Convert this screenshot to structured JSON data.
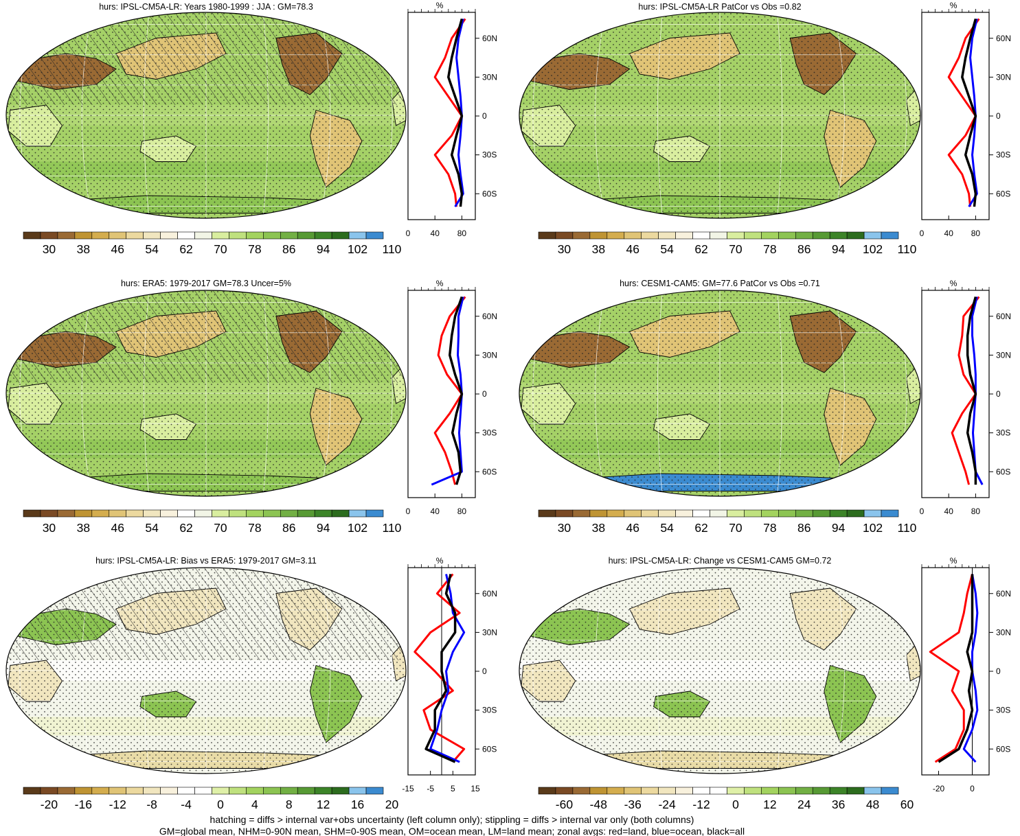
{
  "palettes": {
    "hurs": [
      "#5a3a1a",
      "#7a4a24",
      "#9a6a34",
      "#bf9433",
      "#d4ad4e",
      "#e0c476",
      "#ecd99f",
      "#f1e6bf",
      "#f8f1dd",
      "#ffffff",
      "#f2f5e6",
      "#d9ee9f",
      "#bfe17e",
      "#a3d35f",
      "#8cc452",
      "#72b044",
      "#579a34",
      "#3c8428",
      "#2c6c1e",
      "#8ac4ec",
      "#3b8bd0"
    ],
    "diff": [
      "#5a3a1a",
      "#7a4a24",
      "#9a6a34",
      "#bf9433",
      "#d4ad4e",
      "#e0c476",
      "#ecd99f",
      "#f1e6bf",
      "#f8f1dd",
      "#ffffff",
      "#ffffff",
      "#dff0a8",
      "#bfe17e",
      "#a3d35f",
      "#8cc452",
      "#72b044",
      "#579a34",
      "#3c8428",
      "#2c6c1e",
      "#8ac4ec",
      "#3b8bd0"
    ]
  },
  "panels": [
    {
      "id": "p1",
      "title": "hurs: IPSL-CM5A-LR: Years 1980-1999 : JJA : GM=78.3",
      "palette": "hurs",
      "bg": "#a5d167",
      "hatch": true,
      "colorbar_labels": [
        "30",
        "38",
        "46",
        "54",
        "62",
        "70",
        "78",
        "86",
        "94",
        "102",
        "110"
      ],
      "zonal": {
        "ticks": [
          "0",
          "40",
          "80"
        ],
        "xlim": [
          0,
          100
        ],
        "zero_line": false
      }
    },
    {
      "id": "p2",
      "title": "hurs: IPSL-CM5A-LR PatCor vs Obs =0.82",
      "palette": "hurs",
      "bg": "#a5d167",
      "hatch": false,
      "colorbar_labels": [
        "30",
        "38",
        "46",
        "54",
        "62",
        "70",
        "78",
        "86",
        "94",
        "102",
        "110"
      ],
      "zonal": {
        "ticks": [
          "0",
          "40",
          "80"
        ],
        "xlim": [
          0,
          100
        ],
        "zero_line": false
      }
    },
    {
      "id": "p3",
      "title": "hurs: ERA5: 1979-2017 GM=78.3 Uncer=5%",
      "palette": "hurs",
      "bg": "#a5d167",
      "hatch": true,
      "colorbar_labels": [
        "30",
        "38",
        "46",
        "54",
        "62",
        "70",
        "78",
        "86",
        "94",
        "102",
        "110"
      ],
      "zonal": {
        "ticks": [
          "0",
          "40",
          "80"
        ],
        "xlim": [
          0,
          100
        ],
        "zero_line": false
      }
    },
    {
      "id": "p4",
      "title": "hurs: CESM1-CAM5: GM=77.6 PatCor vs Obs =0.71",
      "palette": "hurs",
      "bg": "#a5d167",
      "hatch": false,
      "colorbar_labels": [
        "30",
        "38",
        "46",
        "54",
        "62",
        "70",
        "78",
        "86",
        "94",
        "102",
        "110"
      ],
      "zonal": {
        "ticks": [
          "0",
          "40",
          "80"
        ],
        "xlim": [
          0,
          100
        ],
        "zero_line": false
      }
    },
    {
      "id": "p5",
      "title": "hurs: IPSL-CM5A-LR: Bias vs ERA5: 1979-2017 GM=3.11",
      "palette": "diff",
      "bg": "#f3f5ea",
      "hatch": true,
      "colorbar_labels": [
        "-20",
        "-16",
        "-12",
        "-8",
        "-4",
        "0",
        "4",
        "8",
        "12",
        "16",
        "20"
      ],
      "zonal": {
        "ticks": [
          "-15",
          "-5",
          "5",
          "15"
        ],
        "xlim": [
          -15,
          15
        ],
        "zero_line": true
      }
    },
    {
      "id": "p6",
      "title": "hurs: IPSL-CM5A-LR: Change vs CESM1-CAM5 GM=0.72",
      "palette": "diff",
      "bg": "#f3f5ea",
      "hatch": false,
      "colorbar_labels": [
        "-60",
        "-48",
        "-36",
        "-24",
        "-12",
        "0",
        "12",
        "24",
        "36",
        "48",
        "60"
      ],
      "zonal": {
        "ticks": [
          "-20",
          "0"
        ],
        "xlim": [
          -30,
          10
        ],
        "zero_line": true
      }
    }
  ],
  "chart_data": {
    "type": "line",
    "lat_axis_labels": [
      "60N",
      "30N",
      "0",
      "30S",
      "60S"
    ],
    "zonal_units": "%",
    "series_colors": {
      "land": "#ff0000",
      "ocean": "#0000ff",
      "all": "#000000"
    },
    "lat": [
      75,
      60,
      45,
      30,
      15,
      0,
      -15,
      -30,
      -45,
      -60,
      -70
    ],
    "panels": [
      {
        "land": [
          85,
          65,
          55,
          40,
          60,
          80,
          65,
          40,
          60,
          70,
          72
        ],
        "ocean": [
          82,
          75,
          72,
          75,
          78,
          80,
          78,
          75,
          78,
          82,
          70
        ],
        "all": [
          80,
          72,
          65,
          60,
          70,
          80,
          72,
          65,
          75,
          80,
          78
        ]
      },
      {
        "land": [
          85,
          65,
          55,
          40,
          60,
          80,
          65,
          40,
          60,
          70,
          72
        ],
        "ocean": [
          82,
          75,
          72,
          75,
          78,
          80,
          78,
          75,
          78,
          82,
          70
        ],
        "all": [
          80,
          72,
          65,
          60,
          70,
          80,
          72,
          65,
          75,
          80,
          78
        ]
      },
      {
        "land": [
          85,
          62,
          50,
          45,
          58,
          80,
          62,
          40,
          55,
          65,
          70
        ],
        "ocean": [
          82,
          75,
          75,
          74,
          78,
          80,
          78,
          76,
          78,
          80,
          35
        ],
        "all": [
          80,
          70,
          65,
          62,
          70,
          80,
          72,
          66,
          75,
          78,
          72
        ]
      },
      {
        "land": [
          85,
          62,
          60,
          55,
          62,
          80,
          60,
          45,
          55,
          65,
          70
        ],
        "ocean": [
          82,
          75,
          75,
          78,
          80,
          80,
          78,
          76,
          78,
          80,
          90
        ],
        "all": [
          80,
          72,
          68,
          68,
          72,
          80,
          72,
          68,
          75,
          80,
          80
        ]
      },
      {
        "land": [
          5,
          -2,
          8,
          -5,
          -12,
          -3,
          5,
          -8,
          -5,
          10,
          5
        ],
        "ocean": [
          2,
          4,
          5,
          10,
          5,
          2,
          3,
          0,
          -2,
          -5,
          8
        ],
        "all": [
          4,
          2,
          6,
          6,
          0,
          0,
          2,
          -3,
          -3,
          -7,
          6
        ]
      },
      {
        "land": [
          0,
          -3,
          -5,
          -8,
          -25,
          -8,
          -12,
          -5,
          -5,
          -10,
          -22
        ],
        "ocean": [
          0,
          2,
          3,
          2,
          0,
          0,
          2,
          3,
          0,
          -5,
          2
        ],
        "all": [
          0,
          0,
          0,
          0,
          -3,
          0,
          -2,
          0,
          -3,
          -8,
          -20
        ]
      }
    ]
  },
  "footer": {
    "line1": "hatching = diffs > internal var+obs uncertainty (left column only); stippling = diffs > internal var only (both columns)",
    "line2": "GM=global mean, NHM=0-90N mean, SHM=0-90S mean, OM=ocean mean, LM=land mean; zonal avgs: red=land, blue=ocean, black=all"
  }
}
